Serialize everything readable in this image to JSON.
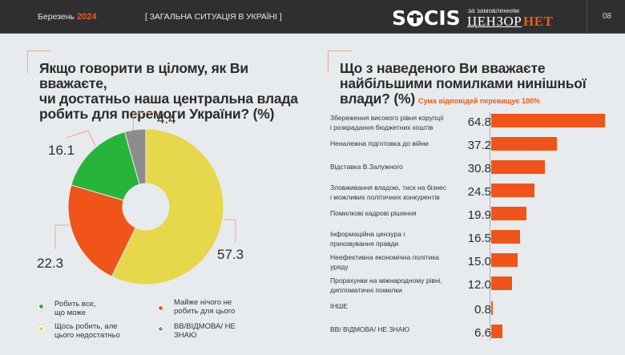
{
  "header": {
    "month": "Березень",
    "year": "2024",
    "section": "[ ЗАГАЛЬНА СИТУАЦІЯ В УКРАЇНІ ]",
    "logo": {
      "socis_prefix": "S",
      "socis_suffix": "CIS",
      "za_zamovlenniam": "за замовленням",
      "cenzor": "ЦЕНЗОР",
      "net": "НЕТ"
    },
    "page_number": "08"
  },
  "left": {
    "title_lines": [
      "Якщо говорити в цілому, як Ви вважаєте,",
      "чи достатньо наша центральна влада",
      "робить для перемоги України? (%)"
    ],
    "legend": [
      {
        "label_lines": [
          "Робить все,",
          "що може"
        ],
        "color": "#27b43a"
      },
      {
        "label_lines": [
          "Майже нічого не",
          "робить для цього"
        ],
        "color": "#f05418"
      },
      {
        "label_lines": [
          "Щось робить, але",
          "цього недостатньо"
        ],
        "color": "#e6d74b"
      },
      {
        "label_lines": [
          "ВВ/ВІДМОВА/ НЕ",
          "ЗНАЮ"
        ],
        "color": "#8c8c8c"
      }
    ]
  },
  "right": {
    "title_lines": [
      "Що з наведеного Ви вважаєте",
      "найбільшими помилками нинішньої",
      "влади? (%)"
    ],
    "note": "Сума відповідей перевищує 100%"
  },
  "chart_data": [
    {
      "type": "pie",
      "variant": "donut",
      "title": "Якщо говорити в цілому, як Ви вважаєте, чи достатньо наша центральна влада робить для перемоги України? (%)",
      "categories": [
        "Щось робить, але цього недостатньо",
        "Майже нічого не робить для цього",
        "Робить все, що може",
        "ВВ/ВІДМОВА/ НЕ ЗНАЮ"
      ],
      "values": [
        57.3,
        22.3,
        16.1,
        4.4
      ],
      "labels": [
        "57.3",
        "22.3",
        "16.1",
        "4.4"
      ],
      "colors": [
        "#e6d74b",
        "#f05418",
        "#27b43a",
        "#8c8c8c"
      ],
      "legend_position": "bottom"
    },
    {
      "type": "bar",
      "orientation": "horizontal",
      "title": "Що з наведеного Ви вважаєте найбільшими помилками нинішньої влади? (%)",
      "subtitle": "Сума відповідей перевищує 100%",
      "categories": [
        [
          "Збереження високого рівня корупції",
          "і розкрадання бюджетних коштів"
        ],
        [
          "Неналежна підготовка до війни"
        ],
        [
          "Відставка В.Залужного"
        ],
        [
          "Зловживання владою, тиск на бізнес",
          "і можливих політичних конкурентів"
        ],
        [
          "Помилкові кадрові рішення"
        ],
        [
          "Інформаційна цензура і",
          "приховування правди"
        ],
        [
          "Неефективна економічна політика",
          "уряду"
        ],
        [
          "Прорахунки на міжнародному рівні,",
          "дипломатичні помилки"
        ],
        [
          "ІНШЕ"
        ],
        [
          "ВВ/ ВІДМОВА/ НЕ ЗНАЮ"
        ]
      ],
      "values": [
        64.8,
        37.2,
        30.8,
        24.5,
        19.9,
        16.5,
        15.0,
        12.0,
        0.8,
        6.6
      ],
      "labels": [
        "64.8",
        "37.2",
        "30.8",
        "24.5",
        "19.9",
        "16.5",
        "15.0",
        "12.0",
        "0.8",
        "6.6"
      ],
      "color": "#f05418",
      "xlim": [
        0,
        70
      ]
    }
  ]
}
